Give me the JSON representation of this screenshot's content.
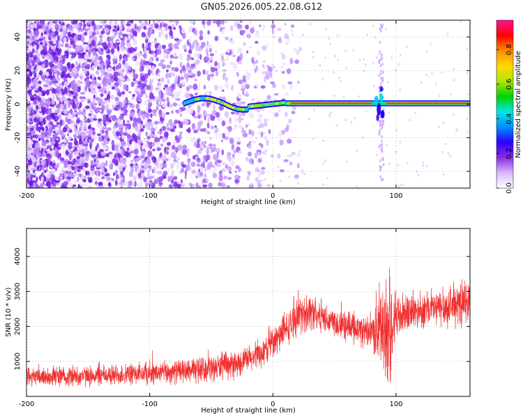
{
  "title": "GN05.2026.005.22.08.G12",
  "chart_data": [
    {
      "type": "heatmap",
      "name": "spectrogram",
      "xlabel": "Height of straight line (km)",
      "ylabel": "Frequency (Hz)",
      "xlim": [
        -200,
        160
      ],
      "ylim": [
        -50,
        50
      ],
      "xticks": [
        -200,
        -100,
        0,
        100
      ],
      "yticks": [
        -40,
        -20,
        0,
        20,
        40
      ],
      "colorbar": {
        "label": "Normalized spectral amplitude",
        "range": [
          0,
          0.97
        ],
        "ticks": [
          "0.0",
          "0.2",
          "0.4",
          "0.6",
          "0.8"
        ],
        "tick_values": [
          0,
          0.2,
          0.4,
          0.6,
          0.8
        ],
        "colors": [
          "#ffffff",
          "#d9b8ff",
          "#8b2be2",
          "#2b00ff",
          "#0090ff",
          "#00e6e6",
          "#00d200",
          "#b4e600",
          "#ffd700",
          "#ff8c00",
          "#ff0000",
          "#ff1493"
        ]
      },
      "features": [
        {
          "name": "noise-cloud",
          "x_range": [
            -200,
            -20
          ],
          "y_range": [
            -50,
            50
          ]
        },
        {
          "name": "signal-line",
          "x_range": [
            -70,
            160
          ],
          "y": 0.5
        },
        {
          "name": "disturbance",
          "x_range": [
            82,
            92
          ],
          "y_range": [
            -12,
            10
          ]
        }
      ]
    },
    {
      "type": "line",
      "name": "snr",
      "xlabel": "Height of straight line (km)",
      "ylabel": "SNR (10 * v/v)",
      "xlim": [
        -200,
        160
      ],
      "ylim": [
        0,
        4800
      ],
      "xticks": [
        -200,
        -100,
        0,
        100
      ],
      "yticks": [
        1000,
        2000,
        3000,
        4000
      ],
      "color": "#f03030",
      "trend": [
        {
          "x": -200,
          "mean": 550,
          "amp": 300
        },
        {
          "x": -150,
          "mean": 580,
          "amp": 320
        },
        {
          "x": -100,
          "mean": 650,
          "amp": 350
        },
        {
          "x": -60,
          "mean": 750,
          "amp": 380
        },
        {
          "x": -30,
          "mean": 900,
          "amp": 420
        },
        {
          "x": -10,
          "mean": 1200,
          "amp": 450
        },
        {
          "x": 5,
          "mean": 1700,
          "amp": 500
        },
        {
          "x": 20,
          "mean": 2250,
          "amp": 550
        },
        {
          "x": 30,
          "mean": 2450,
          "amp": 600
        },
        {
          "x": 45,
          "mean": 2200,
          "amp": 500
        },
        {
          "x": 60,
          "mean": 2000,
          "amp": 480
        },
        {
          "x": 80,
          "mean": 1800,
          "amp": 500
        },
        {
          "x": 88,
          "mean": 1900,
          "amp": 1400
        },
        {
          "x": 95,
          "mean": 2000,
          "amp": 1800
        },
        {
          "x": 100,
          "mean": 2300,
          "amp": 700
        },
        {
          "x": 120,
          "mean": 2450,
          "amp": 550
        },
        {
          "x": 140,
          "mean": 2550,
          "amp": 600
        },
        {
          "x": 160,
          "mean": 2650,
          "amp": 650
        }
      ]
    }
  ]
}
